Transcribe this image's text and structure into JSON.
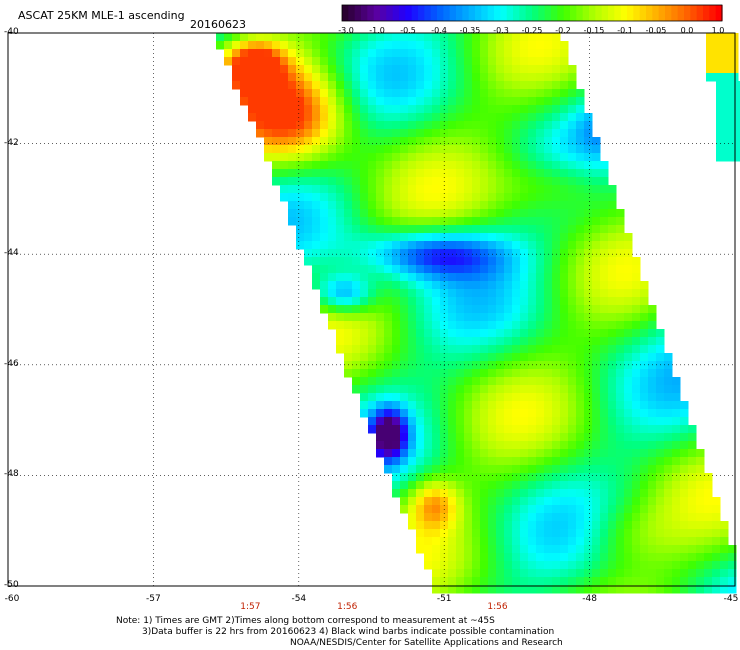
{
  "title": "ASCAT 25KM MLE-1 ascending",
  "date": "20160623",
  "colorbar": {
    "ticks": [
      "-3.0",
      "-1.0",
      "-0.5",
      "-0.4",
      "-0.35",
      "-0.3",
      "-0.25",
      "-0.2",
      "-0.15",
      "-0.1",
      "-0.05",
      "0.0",
      "1.0"
    ],
    "colors": [
      "#2a0030",
      "#5a00a0",
      "#2000ff",
      "#0060ff",
      "#00b0ff",
      "#00ffff",
      "#00ff80",
      "#40ff00",
      "#b0ff00",
      "#ffff00",
      "#ffb000",
      "#ff6000",
      "#ff0000"
    ]
  },
  "axes": {
    "y_labels": [
      "-40",
      "-42",
      "-44",
      "-46",
      "-48",
      "-50"
    ],
    "x_labels": [
      "-60",
      "-57",
      "-54",
      "-51",
      "-48",
      "-45"
    ],
    "x_range": [
      -60,
      -45
    ],
    "y_range": [
      -50,
      -40
    ]
  },
  "time_labels": [
    {
      "text": "1:57",
      "lon": -55
    },
    {
      "text": "1:56",
      "lon": -53
    },
    {
      "text": "1:56",
      "lon": -49.9
    }
  ],
  "notes": [
    "Note: 1) Times are GMT 2)Times along bottom correspond to measurement at ~45S",
    "3)Data buffer is 22 hrs from 20160623 4) Black wind barbs indicate possible contamination",
    "NOAA/NESDIS/Center for Satellite Applications and Research"
  ]
}
